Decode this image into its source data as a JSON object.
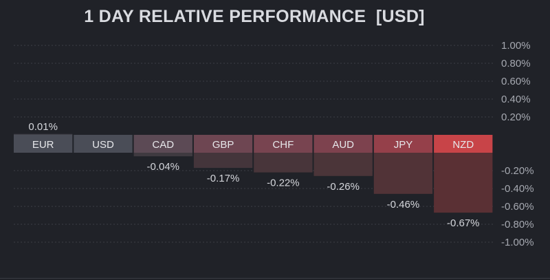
{
  "chart_data": {
    "type": "bar",
    "title": "1 DAY RELATIVE PERFORMANCE  [USD]",
    "categories": [
      "EUR",
      "USD",
      "CAD",
      "GBP",
      "CHF",
      "AUD",
      "JPY",
      "NZD"
    ],
    "values": [
      0.01,
      0.0,
      -0.04,
      -0.17,
      -0.22,
      -0.26,
      -0.46,
      -0.67
    ],
    "value_labels": [
      "0.01%",
      "",
      "-0.04%",
      "-0.17%",
      "-0.22%",
      "-0.26%",
      "-0.46%",
      "-0.67%"
    ],
    "label_colors": [
      "#4a4d57",
      "#4a4d57",
      "#5c4a55",
      "#6e4652",
      "#784450",
      "#7d424e",
      "#95404a",
      "#c84448"
    ],
    "bar_colors": [
      "#3f4048",
      "#3f4048",
      "#3f3a40",
      "#44353b",
      "#48353a",
      "#4b3539",
      "#513337",
      "#5a3034"
    ],
    "ylim": [
      -1.0,
      1.0
    ],
    "yticks": [
      {
        "value": 1.0,
        "label": "1.00%"
      },
      {
        "value": 0.8,
        "label": "0.80%"
      },
      {
        "value": 0.6,
        "label": "0.60%"
      },
      {
        "value": 0.4,
        "label": "0.40%"
      },
      {
        "value": 0.2,
        "label": "0.20%"
      },
      {
        "value": -0.2,
        "label": "-0.20%"
      },
      {
        "value": -0.4,
        "label": "-0.40%"
      },
      {
        "value": -0.6,
        "label": "-0.60%"
      },
      {
        "value": -0.8,
        "label": "-0.80%"
      },
      {
        "value": -1.0,
        "label": "-1.00%"
      }
    ],
    "grid": true
  },
  "colors": {
    "background": "#202228",
    "grid": "#3b3e46",
    "tick_text": "#a6a9b1",
    "value_text": "#d4d6db",
    "category_text": "#e6e7ea"
  }
}
